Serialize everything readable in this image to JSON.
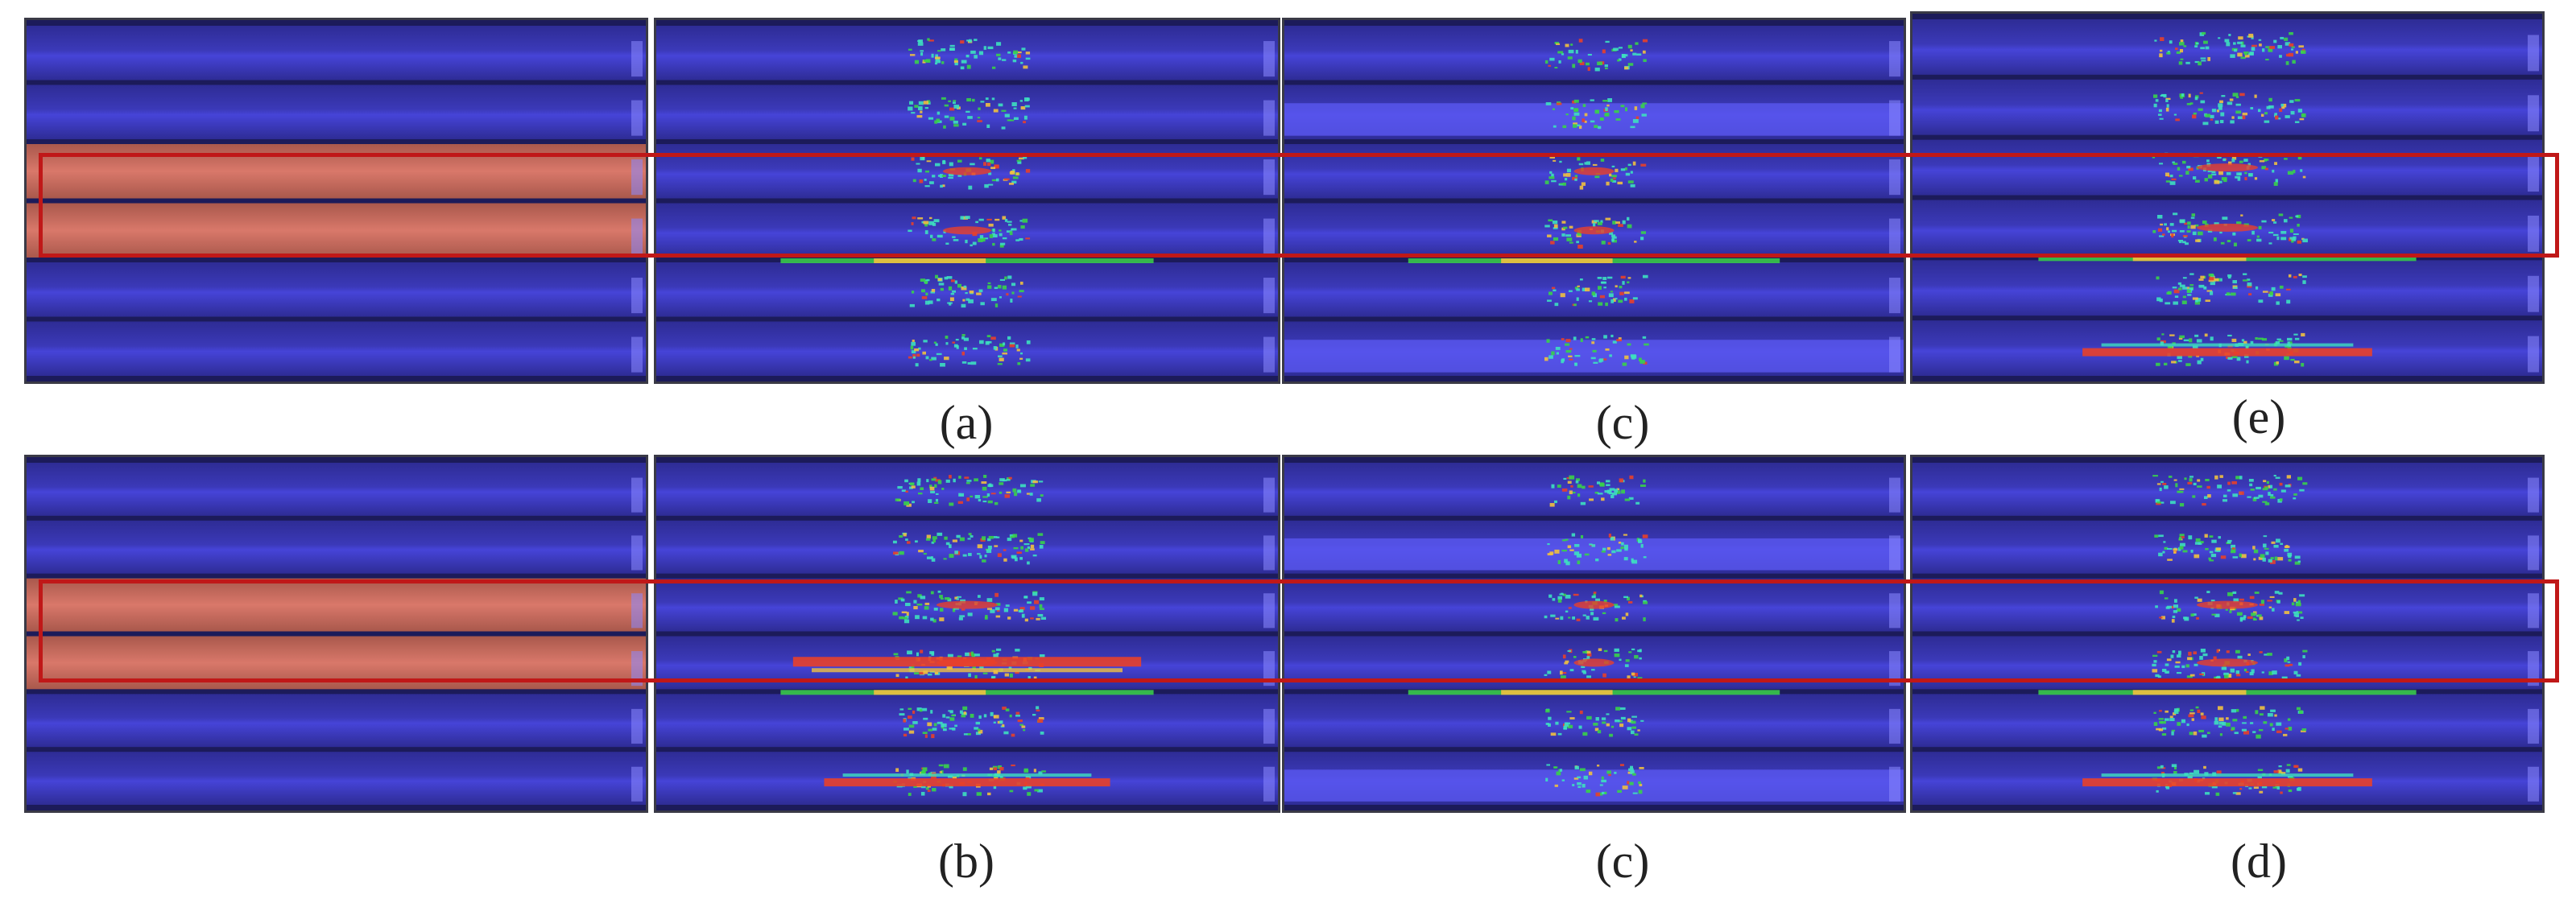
{
  "figure": {
    "top_row": {
      "panels": [
        {
          "id": "top-ref",
          "kind": "reference"
        },
        {
          "id": "top-a",
          "kind": "result",
          "label": "(a)",
          "intensity": "medium"
        },
        {
          "id": "top-c",
          "kind": "result",
          "label": "(c)",
          "intensity": "low"
        },
        {
          "id": "top-e",
          "kind": "result",
          "label": "(e)",
          "intensity": "high"
        }
      ]
    },
    "bottom_row": {
      "panels": [
        {
          "id": "bottom-ref",
          "kind": "reference"
        },
        {
          "id": "bottom-b",
          "kind": "result",
          "label": "(b)",
          "intensity": "high"
        },
        {
          "id": "bottom-c",
          "kind": "result",
          "label": "(c)",
          "intensity": "low"
        },
        {
          "id": "bottom-d",
          "kind": "result",
          "label": "(d)",
          "intensity": "high"
        }
      ]
    },
    "colors": {
      "bar_dark": "#2e2c95",
      "bar_mid": "#3b39b8",
      "bar_light": "#4644d8",
      "bar_bright": "#5a58f0",
      "gap": "#1c1b5a",
      "frame": "#3a3a46",
      "highlight_fill": "#d9786a",
      "highlight_dark": "#a9584c",
      "box": "#c01818",
      "hot": "#e8402a",
      "warm": "#f0c040",
      "cool": "#3de0c0",
      "green": "#39d24a"
    }
  }
}
